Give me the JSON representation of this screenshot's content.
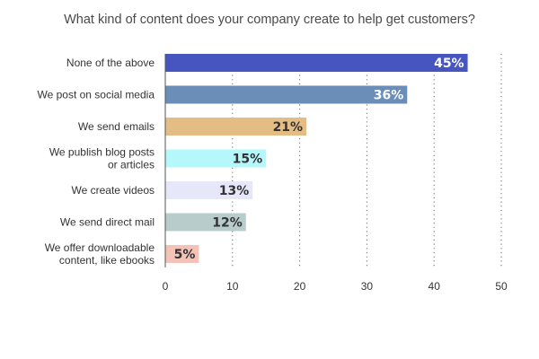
{
  "chart_data": {
    "type": "bar",
    "orientation": "horizontal",
    "title": "What kind of content does your company create to help get customers?",
    "xlabel": "",
    "ylabel": "",
    "xlim": [
      0,
      50
    ],
    "x_ticks": [
      "0",
      "10",
      "20",
      "30",
      "40",
      "50"
    ],
    "grid": "vertical dotted",
    "categories": [
      [
        "None of the above"
      ],
      [
        "We post on social media"
      ],
      [
        "We send emails"
      ],
      [
        "We publish blog posts",
        "or articles"
      ],
      [
        "We create videos"
      ],
      [
        "We send direct mail"
      ],
      [
        "We offer downloadable",
        "content, like ebooks"
      ]
    ],
    "values": [
      45,
      36,
      21,
      15,
      13,
      12,
      5
    ],
    "value_labels": [
      "45%",
      "36%",
      "21%",
      "15%",
      "13%",
      "12%",
      "5%"
    ],
    "colors": [
      "#4655c0",
      "#6b8eb8",
      "#e4bd84",
      "#b4f8fb",
      "#e6e8fa",
      "#b8cccc",
      "#f3c3b7"
    ],
    "label_colors": [
      "#ffffff",
      "#ffffff",
      "#333333",
      "#333333",
      "#333333",
      "#333333",
      "#333333"
    ]
  }
}
